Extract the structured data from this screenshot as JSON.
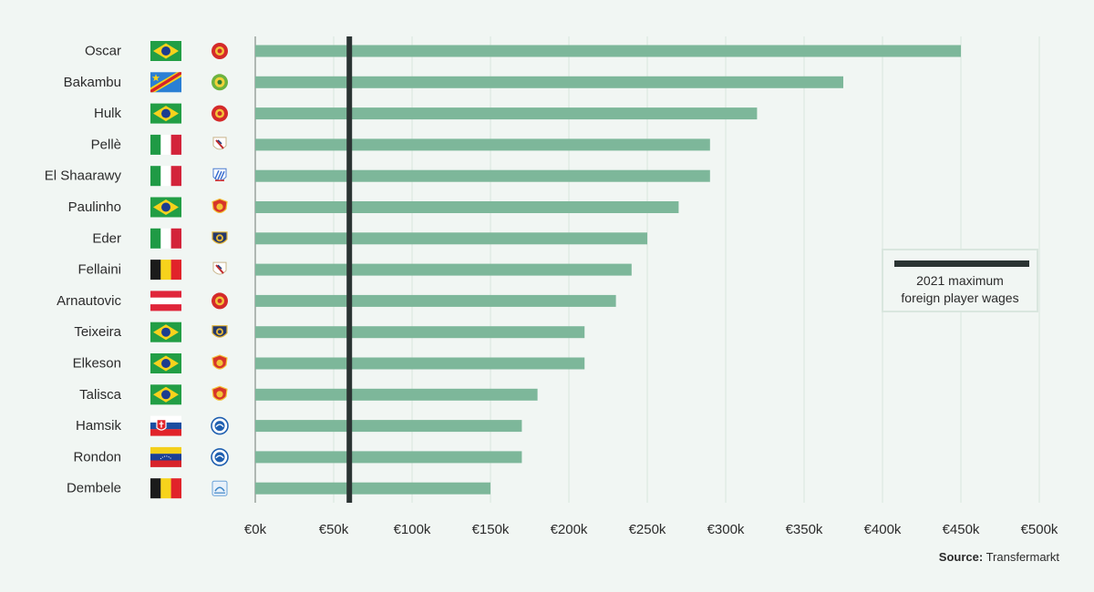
{
  "chart_data": {
    "type": "bar",
    "orientation": "horizontal",
    "categories": [
      "Oscar",
      "Bakambu",
      "Hulk",
      "Pellè",
      "El Shaarawy",
      "Paulinho",
      "Eder",
      "Fellaini",
      "Arnautovic",
      "Teixeira",
      "Elkeson",
      "Talisca",
      "Hamsik",
      "Rondon",
      "Dembele"
    ],
    "values": [
      450,
      375,
      320,
      290,
      290,
      270,
      250,
      240,
      230,
      210,
      210,
      180,
      170,
      170,
      150
    ],
    "value_unit": "thousand euros",
    "nationalities": [
      "Brazil",
      "DR Congo",
      "Brazil",
      "Italy",
      "Italy",
      "Brazil",
      "Italy",
      "Belgium",
      "Austria",
      "Brazil",
      "Brazil",
      "Brazil",
      "Slovakia",
      "Venezuela",
      "Belgium"
    ],
    "clubs": [
      "shanghai-red-crest-icon",
      "green-crest-icon",
      "shanghai-red-crest-icon",
      "white-shield-crest-icon",
      "blue-stripe-crest-icon",
      "guangzhou-red-crest-icon",
      "jiangsu-blue-crest-icon",
      "white-shield-crest-icon",
      "shanghai-red-crest-icon",
      "jiangsu-blue-crest-icon",
      "guangzhou-red-crest-icon",
      "guangzhou-red-crest-icon",
      "dalian-round-crest-icon",
      "dalian-round-crest-icon",
      "qingdao-crest-icon"
    ],
    "xlim": [
      0,
      500
    ],
    "x_ticks": [
      0,
      50,
      100,
      150,
      200,
      250,
      300,
      350,
      400,
      450,
      500
    ],
    "x_tick_labels": [
      "€0k",
      "€50k",
      "€100k",
      "€150k",
      "€200k",
      "€250k",
      "€300k",
      "€350k",
      "€400k",
      "€450k",
      "€500k"
    ],
    "reference_line": {
      "value": 60,
      "label": "2021 maximum foreign player wages"
    },
    "grid": true,
    "legend_position": "right",
    "colors": {
      "bar": "#7db79a",
      "reference": "#2b3433",
      "background": "#f1f6f3"
    }
  },
  "legend": {
    "line1": "2021 maximum",
    "line2": "foreign player wages"
  },
  "source": {
    "label": "Source:",
    "text": "Transfermarkt"
  }
}
